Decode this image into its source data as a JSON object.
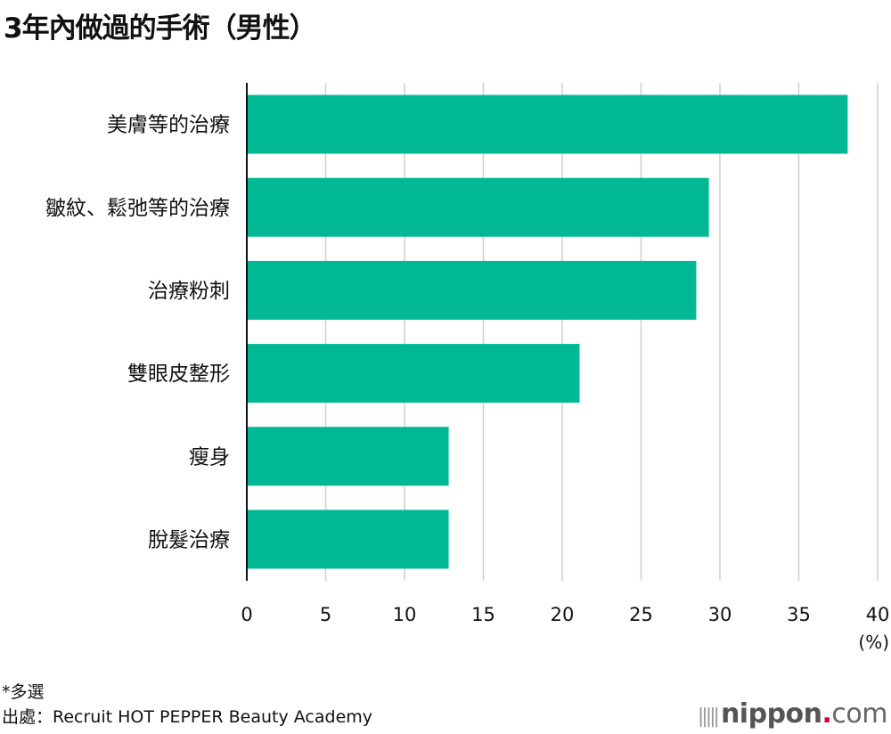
{
  "chart_data": {
    "type": "bar",
    "orientation": "horizontal",
    "title": "3年內做過的手術（男性）",
    "categories": [
      "美膚等的治療",
      "皺紋、鬆弛等的治療",
      "治療粉刺",
      "雙眼皮整形",
      "瘦身",
      "脫髮治療"
    ],
    "values": [
      38.1,
      29.3,
      28.5,
      21.1,
      12.8,
      12.8
    ],
    "xlim": [
      0,
      40
    ],
    "xticks": [
      0,
      5,
      10,
      15,
      20,
      25,
      30,
      35,
      40
    ],
    "xlabel": "(%)",
    "grid": true,
    "bar_color": "#00b894"
  },
  "footer": {
    "note": "*多選",
    "source": "出處：Recruit HOT PEPPER Beauty Academy"
  },
  "logo": {
    "text": "nippon.com",
    "brand": "nippon",
    "dot": ".",
    "suffix": "com"
  }
}
